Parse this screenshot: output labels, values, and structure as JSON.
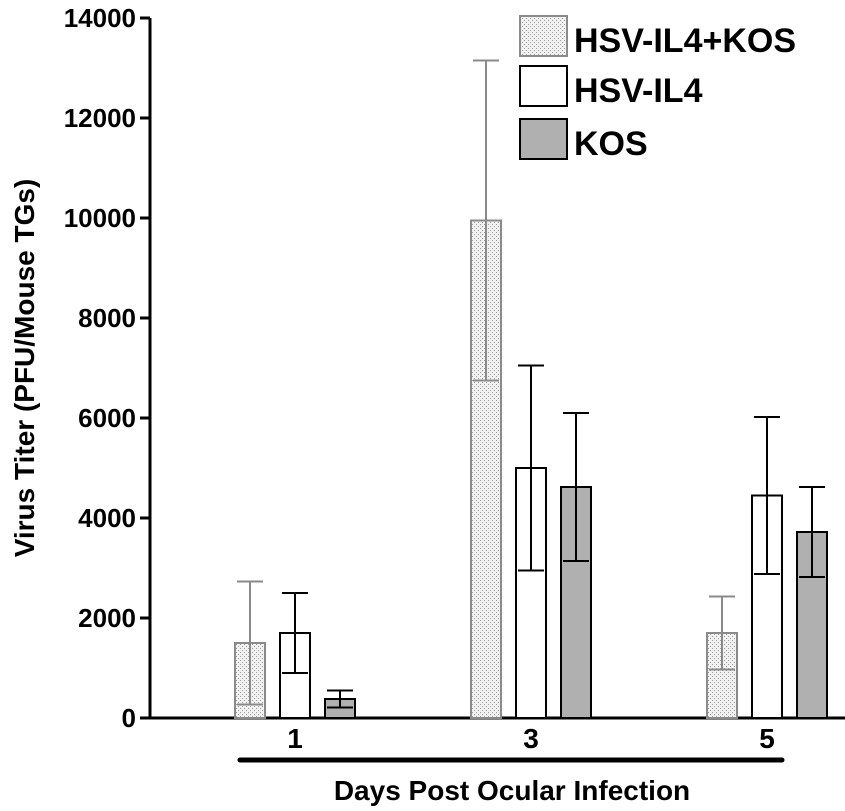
{
  "chart_data": {
    "type": "bar",
    "categories": [
      "1",
      "3",
      "5"
    ],
    "series": [
      {
        "name": "HSV-IL4+KOS",
        "values": [
          1500,
          9950,
          1700
        ],
        "errors": [
          1230,
          3200,
          730
        ],
        "pattern": "stipple",
        "stroke": "#8a8a8a"
      },
      {
        "name": "HSV-IL4",
        "values": [
          1700,
          5000,
          4450
        ],
        "errors": [
          800,
          2050,
          1570
        ],
        "pattern": "none",
        "fill": "#ffffff",
        "stroke": "#000000"
      },
      {
        "name": "KOS",
        "values": [
          380,
          4620,
          3720
        ],
        "errors": [
          170,
          1480,
          900
        ],
        "pattern": "none",
        "fill": "#b0b0b0",
        "stroke": "#000000"
      }
    ],
    "xlabel": "Days Post Ocular Infection",
    "ylabel": "Virus Titer (PFU/Mouse TGs)",
    "ylim": [
      0,
      14000
    ],
    "yticks": [
      0,
      2000,
      4000,
      6000,
      8000,
      10000,
      12000,
      14000
    ],
    "grid": false,
    "legend_position": "top-right"
  }
}
